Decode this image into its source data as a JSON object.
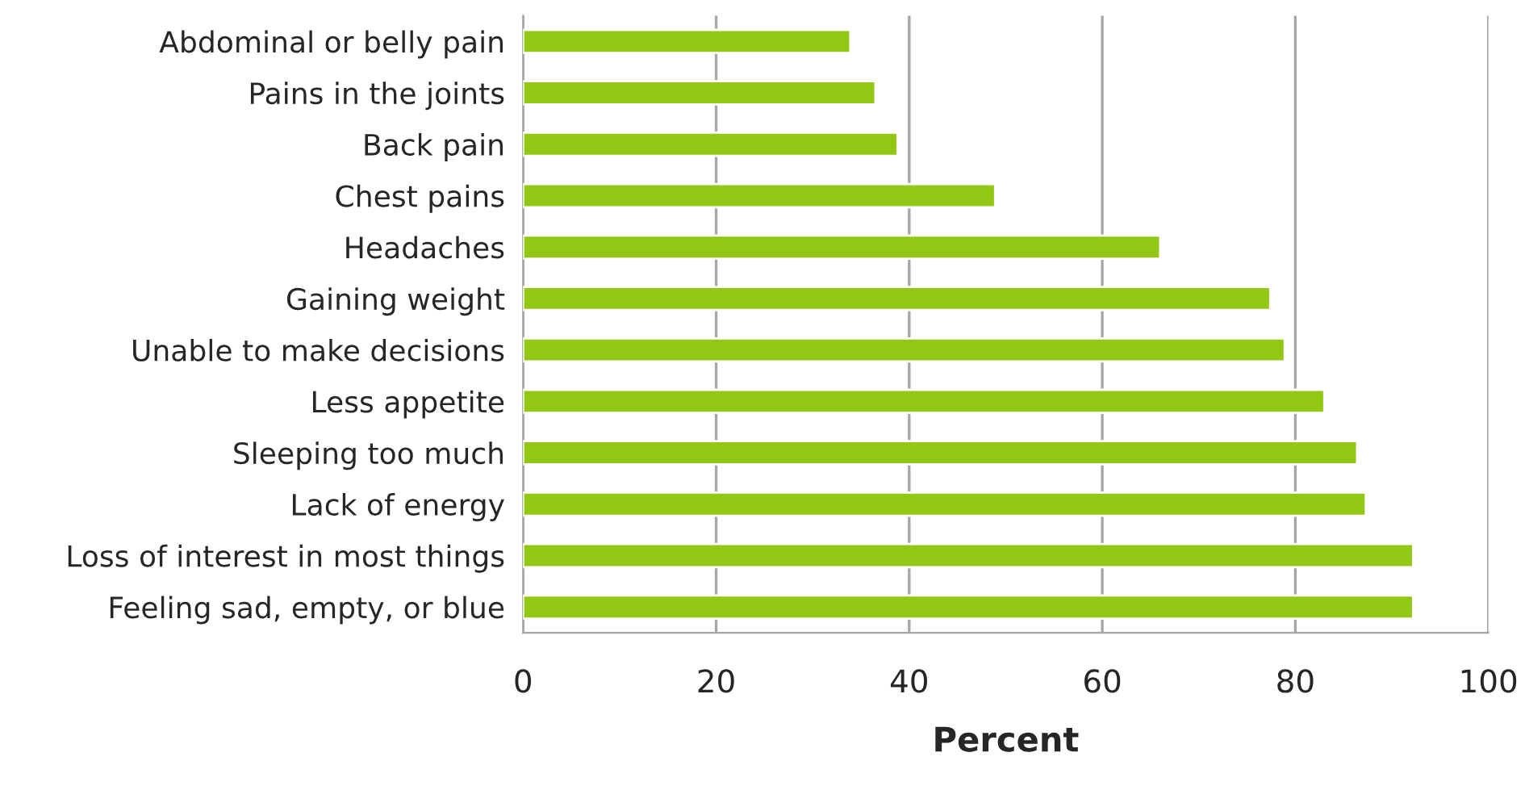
{
  "chart_data": {
    "type": "bar",
    "orientation": "horizontal",
    "xlabel": "Percent",
    "categories": [
      "Abdominal or belly pain",
      "Pains in the joints",
      "Back pain",
      "Chest pains",
      "Headaches",
      "Gaining weight",
      "Unable to make decisions",
      "Less appetite",
      "Sleeping too much",
      "Lack of energy",
      "Loss of interest in most things",
      "Feeling sad, empty, or blue"
    ],
    "values": [
      33.9,
      36.5,
      38.8,
      48.9,
      66.0,
      77.4,
      78.9,
      83.0,
      86.4,
      87.3,
      92.2,
      92.2
    ],
    "color": "#92c714",
    "xlim": [
      0,
      100
    ],
    "xticks": [
      0,
      20,
      40,
      60,
      80,
      100
    ],
    "grid": "x"
  }
}
